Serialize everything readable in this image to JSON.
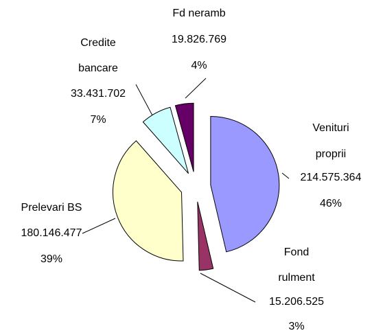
{
  "chart_data": {
    "type": "pie",
    "categories": [
      [
        "Venituri",
        "proprii"
      ],
      [
        "Fond",
        "rulment"
      ],
      [
        "Prelevari BS"
      ],
      [
        "Credite",
        "bancare"
      ],
      [
        "Fd neramb"
      ]
    ],
    "values": [
      214575364,
      15206525,
      180146477,
      33431702,
      19826769
    ],
    "value_labels": [
      "214.575.364",
      "15.206.525",
      "180.146.477",
      "33.431.702",
      "19.826.769"
    ],
    "percents": [
      46,
      3,
      39,
      7,
      4
    ],
    "percent_labels": [
      "46%",
      "3%",
      "39%",
      "7%",
      "4%"
    ],
    "colors": [
      "#9999ff",
      "#993366",
      "#ffffcc",
      "#ccffff",
      "#660066"
    ],
    "exploded": true
  }
}
